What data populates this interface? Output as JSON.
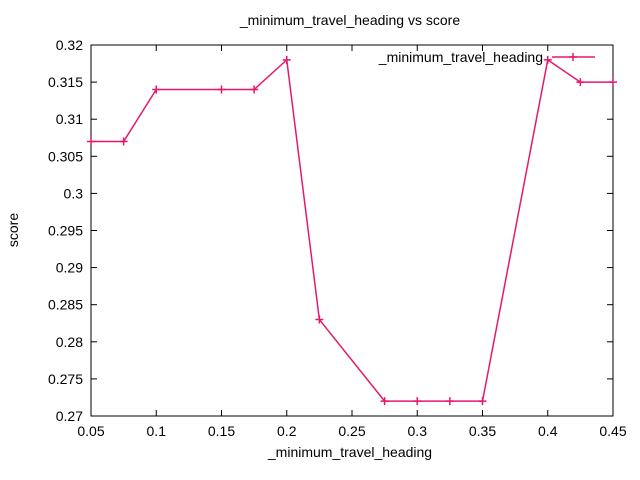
{
  "chart_data": {
    "type": "line",
    "title": "_minimum_travel_heading vs score",
    "xlabel": "_minimum_travel_heading",
    "ylabel": "score",
    "xlim": [
      0.05,
      0.45
    ],
    "ylim": [
      0.27,
      0.32
    ],
    "xticks": [
      0.05,
      0.1,
      0.15,
      0.2,
      0.25,
      0.3,
      0.35,
      0.4,
      0.45
    ],
    "xtick_labels": [
      "0.05",
      "0.1",
      "0.15",
      "0.2",
      "0.25",
      "0.3",
      "0.35",
      "0.4",
      "0.45"
    ],
    "yticks": [
      0.27,
      0.275,
      0.28,
      0.285,
      0.29,
      0.295,
      0.3,
      0.305,
      0.31,
      0.315,
      0.32
    ],
    "ytick_labels": [
      "0.27",
      "0.275",
      "0.28",
      "0.285",
      "0.29",
      "0.295",
      "0.3",
      "0.305",
      "0.31",
      "0.315",
      "0.32"
    ],
    "grid": false,
    "legend_position": "top-right",
    "series": [
      {
        "name": "_minimum_travel_heading",
        "color": "#e6186e",
        "x": [
          0.05,
          0.075,
          0.1,
          0.15,
          0.175,
          0.2,
          0.225,
          0.275,
          0.3,
          0.325,
          0.35,
          0.4,
          0.425,
          0.45
        ],
        "y": [
          0.307,
          0.307,
          0.314,
          0.314,
          0.314,
          0.318,
          0.283,
          0.272,
          0.272,
          0.272,
          0.272,
          0.318,
          0.315,
          0.315
        ]
      }
    ]
  }
}
